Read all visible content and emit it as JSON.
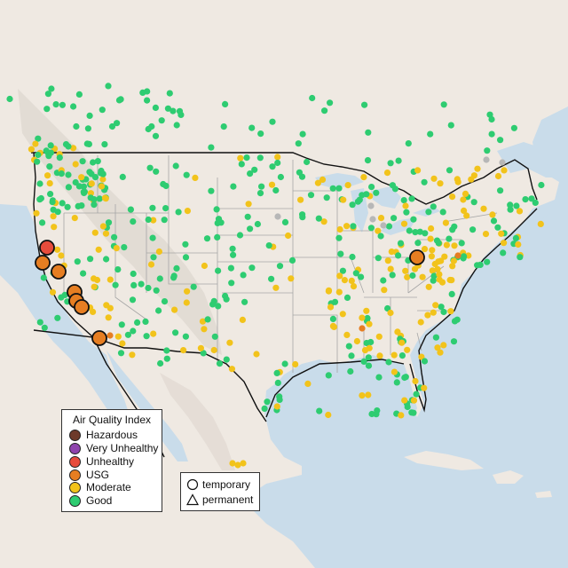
{
  "colors": {
    "water": "#c9dcea",
    "land": "#efe9e2",
    "land_mountain": "#ddd6ce",
    "border": "#111111",
    "state_line": "#a6a6a6",
    "good": "#2ecc71",
    "moderate": "#f2c31b",
    "usg": "#e67e22",
    "unhealthy": "#e74c3c",
    "very_unhealthy": "#8e44ad",
    "hazardous": "#6d3a2a",
    "inactive": "#b7b7b7"
  },
  "legend_aqi": {
    "title": "Air Quality Index",
    "items": [
      {
        "label": "Hazardous",
        "color": "#6d3a2a"
      },
      {
        "label": "Very Unhealthy",
        "color": "#8e44ad"
      },
      {
        "label": "Unhealthy",
        "color": "#e74c3c"
      },
      {
        "label": "USG",
        "color": "#e67e22"
      },
      {
        "label": "Moderate",
        "color": "#f2c31b"
      },
      {
        "label": "Good",
        "color": "#2ecc71"
      }
    ]
  },
  "legend_type": {
    "items": [
      {
        "label": "temporary",
        "shape": "circle"
      },
      {
        "label": "permanent",
        "shape": "triangle"
      }
    ]
  },
  "highlighted_sites": [
    {
      "category": "Unhealthy"
    },
    {
      "category": "USG"
    },
    {
      "category": "USG"
    },
    {
      "category": "USG"
    },
    {
      "category": "USG"
    },
    {
      "category": "USG"
    },
    {
      "category": "USG"
    },
    {
      "category": "USG"
    }
  ]
}
